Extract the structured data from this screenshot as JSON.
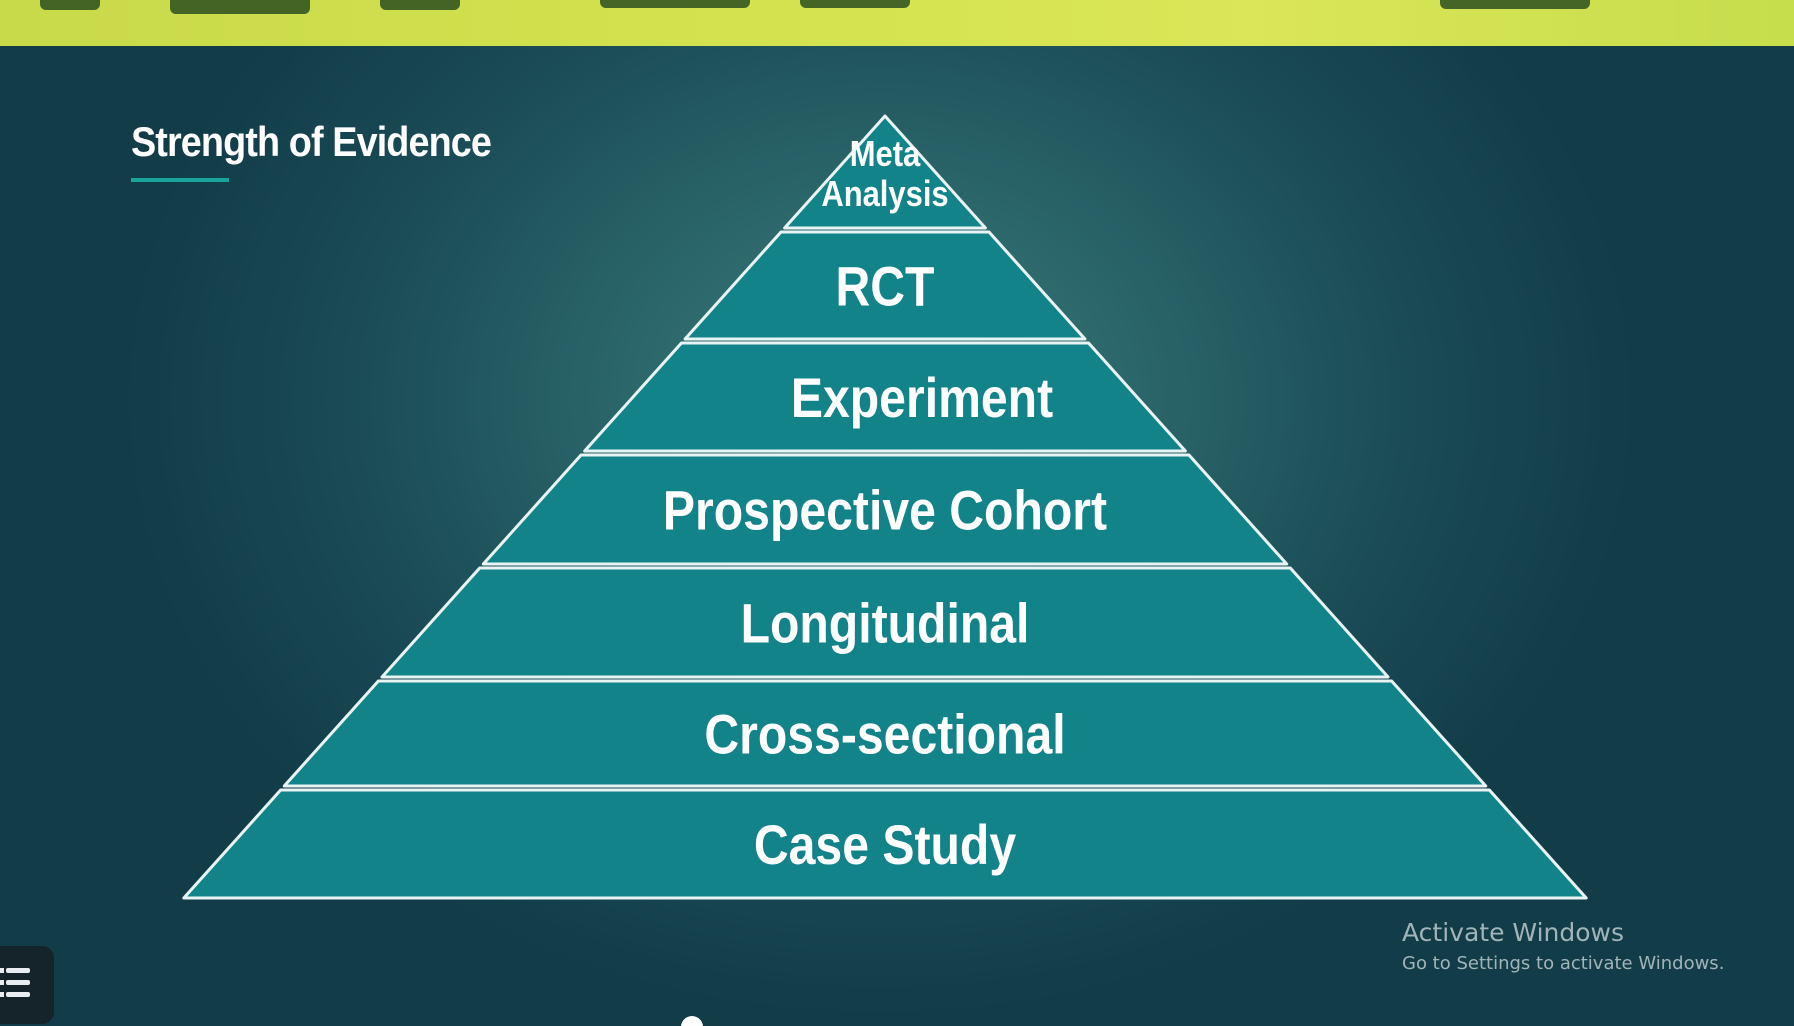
{
  "slide": {
    "title": "Strength of Evidence",
    "pyramid": {
      "tiers": [
        {
          "lines": [
            "Meta",
            "Analysis"
          ]
        },
        {
          "lines": [
            "RCT"
          ]
        },
        {
          "lines": [
            "Experiment"
          ]
        },
        {
          "lines": [
            "Prospective Cohort"
          ]
        },
        {
          "lines": [
            "Longitudinal"
          ]
        },
        {
          "lines": [
            "Cross-sectional"
          ]
        },
        {
          "lines": [
            "Case Study"
          ]
        }
      ],
      "fill_color": "#13838a",
      "line_color": "#e8f4f4"
    }
  },
  "watermark": {
    "title": "Activate Windows",
    "subtitle": "Go to Settings to activate Windows."
  },
  "colors": {
    "banner": "#d3e24e",
    "background": "#1a4b56",
    "accent_underline": "#1aa59a"
  },
  "controls": {
    "menu_icon": "hamburger-menu-icon",
    "scrubber_icon": "playback-scrubber-icon"
  }
}
